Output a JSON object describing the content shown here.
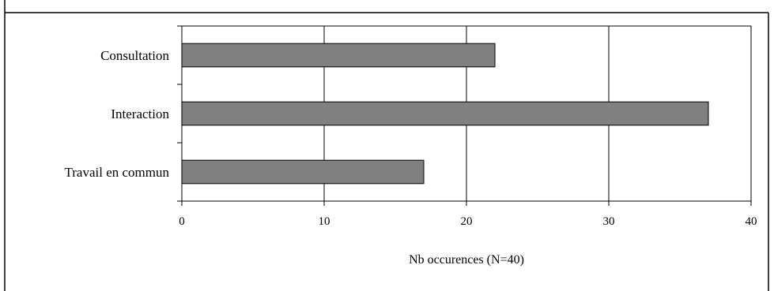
{
  "chart_data": {
    "type": "bar",
    "orientation": "horizontal",
    "categories": [
      "Consultation",
      "Interaction",
      "Travail en commun"
    ],
    "values": [
      22,
      37,
      17
    ],
    "xlabel": "Nb occurences (N=40)",
    "xlim": [
      0,
      40
    ],
    "xticks": [
      0,
      10,
      20,
      30,
      40
    ],
    "grid": "vertical",
    "colors": {
      "bar_fill": "#808080",
      "bar_stroke": "#000000",
      "grid": "#000000",
      "frame": "#000000"
    }
  }
}
